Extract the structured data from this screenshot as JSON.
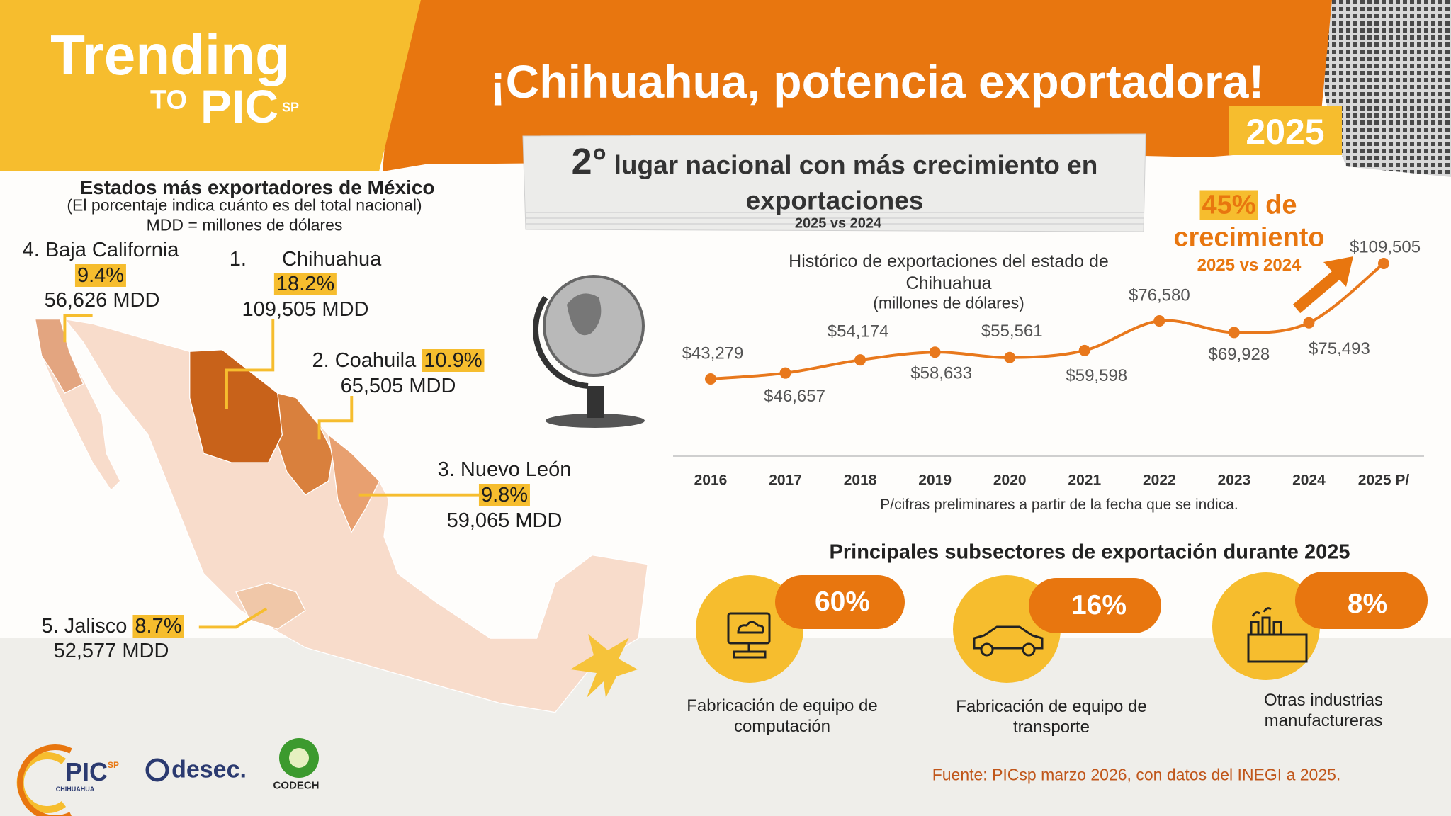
{
  "header": {
    "brand": {
      "trending": "Trending",
      "to": "TO",
      "pic": "PIC",
      "sp": "SP"
    },
    "title": "¡Chihuahua, potencia exportadora!",
    "year": "2025"
  },
  "highlight": {
    "rank": "2°",
    "text": "lugar nacional con más crecimiento en exportaciones",
    "period": "2025 vs 2024"
  },
  "states_panel": {
    "title": "Estados más exportadores de México",
    "subtitle": "(El porcentaje indica cuánto es del total nacional)",
    "note": "MDD = millones de dólares",
    "states": [
      {
        "rank": "4.",
        "name": "Baja California",
        "share": "9.4%",
        "exports": "56,626 MDD"
      },
      {
        "rank": "1.",
        "name": "Chihuahua",
        "share": "18.2%",
        "exports": "109,505 MDD"
      },
      {
        "rank": "2.",
        "name": "Coahuila",
        "share": "10.9%",
        "exports": "65,505 MDD"
      },
      {
        "rank": "3.",
        "name": "Nuevo León",
        "share": "9.8%",
        "exports": "59,065 MDD"
      },
      {
        "rank": "5.",
        "name": "Jalisco",
        "share": "8.7%",
        "exports": "52,577 MDD"
      }
    ]
  },
  "growth": {
    "percent": "45%",
    "word": "de",
    "text": "crecimiento",
    "period": "2025 vs 2024"
  },
  "chart_data": {
    "type": "line",
    "title": "Histórico de exportaciones del estado de Chihuahua",
    "subtitle": "(millones de dólares)",
    "note": "P/cifras preliminares a partir de la fecha que se indica.",
    "categories": [
      "2016",
      "2017",
      "2018",
      "2019",
      "2020",
      "2021",
      "2022",
      "2023",
      "2024",
      "2025 P/"
    ],
    "values": [
      43279,
      46657,
      54174,
      58633,
      55561,
      59598,
      76580,
      69928,
      75493,
      109505
    ],
    "value_labels": [
      "$43,279",
      "$46,657",
      "$54,174",
      "$58,633",
      "$55,561",
      "$59,598",
      "$76,580",
      "$69,928",
      "$75,493",
      "$109,505"
    ],
    "color": "#e8781c"
  },
  "subsectors": {
    "title": "Principales subsectores de exportación durante 2025",
    "items": [
      {
        "share": "60%",
        "label": "Fabricación de equipo de computación"
      },
      {
        "share": "16%",
        "label": "Fabricación de equipo de transporte"
      },
      {
        "share": "8%",
        "label": "Otras industrias manufactureras"
      }
    ]
  },
  "footer": {
    "source": "Fuente: PICsp marzo 2026, con datos del INEGI a 2025.",
    "logos": {
      "pic": "PIC",
      "pic_sp": "SP",
      "pic_city": "CHIHUAHUA",
      "desec": "desec.",
      "codech": "CODECH"
    }
  }
}
